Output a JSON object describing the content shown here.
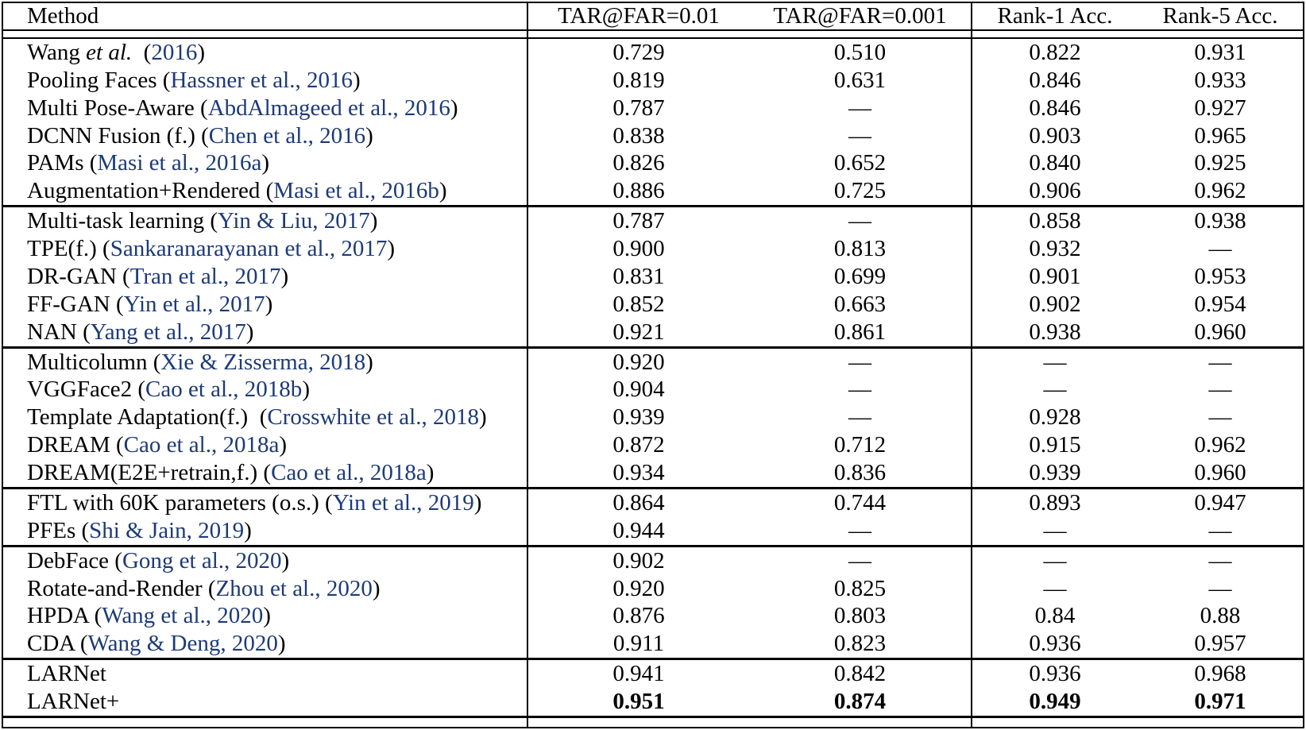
{
  "page": {
    "background": "#ffffff"
  },
  "table": {
    "columns": [
      "Method",
      "TAR@FAR=0.01",
      "TAR@FAR=0.001",
      "Rank-1 Acc.",
      "Rank-5 Acc."
    ],
    "colors": {
      "citation_blue": "#1c3a78",
      "text": "#000000",
      "border": "#000000"
    },
    "missing_value_glyph": "—",
    "groups": [
      {
        "rows": [
          {
            "method": [
              {
                "t": "Wang ",
                "s": "p"
              },
              {
                "t": "et al.",
                "s": "i"
              },
              {
                "t": "  (",
                "s": "p"
              },
              {
                "t": "2016",
                "s": "c"
              },
              {
                "t": ")",
                "s": "p"
              }
            ],
            "values": [
              "0.729",
              "0.510",
              "0.822",
              "0.931"
            ]
          },
          {
            "method": [
              {
                "t": "Pooling Faces (",
                "s": "p"
              },
              {
                "t": "Hassner et al., 2016",
                "s": "c"
              },
              {
                "t": ")",
                "s": "p"
              }
            ],
            "values": [
              "0.819",
              "0.631",
              "0.846",
              "0.933"
            ]
          },
          {
            "method": [
              {
                "t": "Multi Pose-Aware (",
                "s": "p"
              },
              {
                "t": "AbdAlmageed et al., 2016",
                "s": "c"
              },
              {
                "t": ")",
                "s": "p"
              }
            ],
            "values": [
              "0.787",
              "—",
              "0.846",
              "0.927"
            ]
          },
          {
            "method": [
              {
                "t": "DCNN Fusion (f.) (",
                "s": "p"
              },
              {
                "t": "Chen et al., 2016",
                "s": "c"
              },
              {
                "t": ")",
                "s": "p"
              }
            ],
            "values": [
              "0.838",
              "—",
              "0.903",
              "0.965"
            ]
          },
          {
            "method": [
              {
                "t": "PAMs (",
                "s": "p"
              },
              {
                "t": "Masi et al., 2016a",
                "s": "c"
              },
              {
                "t": ")",
                "s": "p"
              }
            ],
            "values": [
              "0.826",
              "0.652",
              "0.840",
              "0.925"
            ]
          },
          {
            "method": [
              {
                "t": "Augmentation+Rendered (",
                "s": "p"
              },
              {
                "t": "Masi et al., 2016b",
                "s": "c"
              },
              {
                "t": ")",
                "s": "p"
              }
            ],
            "values": [
              "0.886",
              "0.725",
              "0.906",
              "0.962"
            ]
          }
        ]
      },
      {
        "rows": [
          {
            "method": [
              {
                "t": "Multi-task learning (",
                "s": "p"
              },
              {
                "t": "Yin & Liu, 2017",
                "s": "c"
              },
              {
                "t": ")",
                "s": "p"
              }
            ],
            "values": [
              "0.787",
              "—",
              "0.858",
              "0.938"
            ]
          },
          {
            "method": [
              {
                "t": "TPE(f.) (",
                "s": "p"
              },
              {
                "t": "Sankaranarayanan et al., 2017",
                "s": "c"
              },
              {
                "t": ")",
                "s": "p"
              }
            ],
            "values": [
              "0.900",
              "0.813",
              "0.932",
              "—"
            ]
          },
          {
            "method": [
              {
                "t": "DR-GAN (",
                "s": "p"
              },
              {
                "t": "Tran et al., 2017",
                "s": "c"
              },
              {
                "t": ")",
                "s": "p"
              }
            ],
            "values": [
              "0.831",
              "0.699",
              "0.901",
              "0.953"
            ]
          },
          {
            "method": [
              {
                "t": "FF-GAN (",
                "s": "p"
              },
              {
                "t": "Yin et al., 2017",
                "s": "c"
              },
              {
                "t": ")",
                "s": "p"
              }
            ],
            "values": [
              "0.852",
              "0.663",
              "0.902",
              "0.954"
            ]
          },
          {
            "method": [
              {
                "t": "NAN (",
                "s": "p"
              },
              {
                "t": "Yang et al., 2017",
                "s": "c"
              },
              {
                "t": ")",
                "s": "p"
              }
            ],
            "values": [
              "0.921",
              "0.861",
              "0.938",
              "0.960"
            ]
          }
        ]
      },
      {
        "rows": [
          {
            "method": [
              {
                "t": "Multicolumn (",
                "s": "p"
              },
              {
                "t": "Xie & Zisserma, 2018",
                "s": "c"
              },
              {
                "t": ")",
                "s": "p"
              }
            ],
            "values": [
              "0.920",
              "—",
              "—",
              "—"
            ]
          },
          {
            "method": [
              {
                "t": "VGGFace2 (",
                "s": "p"
              },
              {
                "t": "Cao et al., 2018b",
                "s": "c"
              },
              {
                "t": ")",
                "s": "p"
              }
            ],
            "values": [
              "0.904",
              "—",
              "—",
              "—"
            ]
          },
          {
            "method": [
              {
                "t": "Template Adaptation(f.)  (",
                "s": "p"
              },
              {
                "t": "Crosswhite et al., 2018",
                "s": "c"
              },
              {
                "t": ")",
                "s": "p"
              }
            ],
            "values": [
              "0.939",
              "—",
              "0.928",
              "—"
            ]
          },
          {
            "method": [
              {
                "t": "DREAM (",
                "s": "p"
              },
              {
                "t": "Cao et al., 2018a",
                "s": "c"
              },
              {
                "t": ")",
                "s": "p"
              }
            ],
            "values": [
              "0.872",
              "0.712",
              "0.915",
              "0.962"
            ]
          },
          {
            "method": [
              {
                "t": "DREAM(E2E+retrain,f.) (",
                "s": "p"
              },
              {
                "t": "Cao et al., 2018a",
                "s": "c"
              },
              {
                "t": ")",
                "s": "p"
              }
            ],
            "values": [
              "0.934",
              "0.836",
              "0.939",
              "0.960"
            ]
          }
        ]
      },
      {
        "rows": [
          {
            "method": [
              {
                "t": "FTL with 60K parameters (o.s.) (",
                "s": "p"
              },
              {
                "t": "Yin et al., 2019",
                "s": "c"
              },
              {
                "t": ")",
                "s": "p"
              }
            ],
            "values": [
              "0.864",
              "0.744",
              "0.893",
              "0.947"
            ]
          },
          {
            "method": [
              {
                "t": "PFEs (",
                "s": "p"
              },
              {
                "t": "Shi & Jain, 2019",
                "s": "c"
              },
              {
                "t": ")",
                "s": "p"
              }
            ],
            "values": [
              "0.944",
              "—",
              "—",
              "—"
            ]
          }
        ]
      },
      {
        "rows": [
          {
            "method": [
              {
                "t": "DebFace (",
                "s": "p"
              },
              {
                "t": "Gong et al., 2020",
                "s": "c"
              },
              {
                "t": ")",
                "s": "p"
              }
            ],
            "values": [
              "0.902",
              "—",
              "—",
              "—"
            ]
          },
          {
            "method": [
              {
                "t": "Rotate-and-Render (",
                "s": "p"
              },
              {
                "t": "Zhou et al., 2020",
                "s": "c"
              },
              {
                "t": ")",
                "s": "p"
              }
            ],
            "values": [
              "0.920",
              "0.825",
              "—",
              "—"
            ]
          },
          {
            "method": [
              {
                "t": "HPDA (",
                "s": "p"
              },
              {
                "t": "Wang et al., 2020",
                "s": "c"
              },
              {
                "t": ")",
                "s": "p"
              }
            ],
            "values": [
              "0.876",
              "0.803",
              "0.84",
              "0.88"
            ]
          },
          {
            "method": [
              {
                "t": "CDA (",
                "s": "p"
              },
              {
                "t": "Wang & Deng, 2020",
                "s": "c"
              },
              {
                "t": ")",
                "s": "p"
              }
            ],
            "values": [
              "0.911",
              "0.823",
              "0.936",
              "0.957"
            ]
          }
        ]
      },
      {
        "rows": [
          {
            "method": [
              {
                "t": "LARNet",
                "s": "p"
              }
            ],
            "values": [
              "0.941",
              "0.842",
              "0.936",
              "0.968"
            ]
          },
          {
            "method": [
              {
                "t": "LARNet+",
                "s": "p"
              }
            ],
            "values": [
              "0.951",
              "0.874",
              "0.949",
              "0.971"
            ],
            "bold": true
          }
        ]
      }
    ]
  }
}
